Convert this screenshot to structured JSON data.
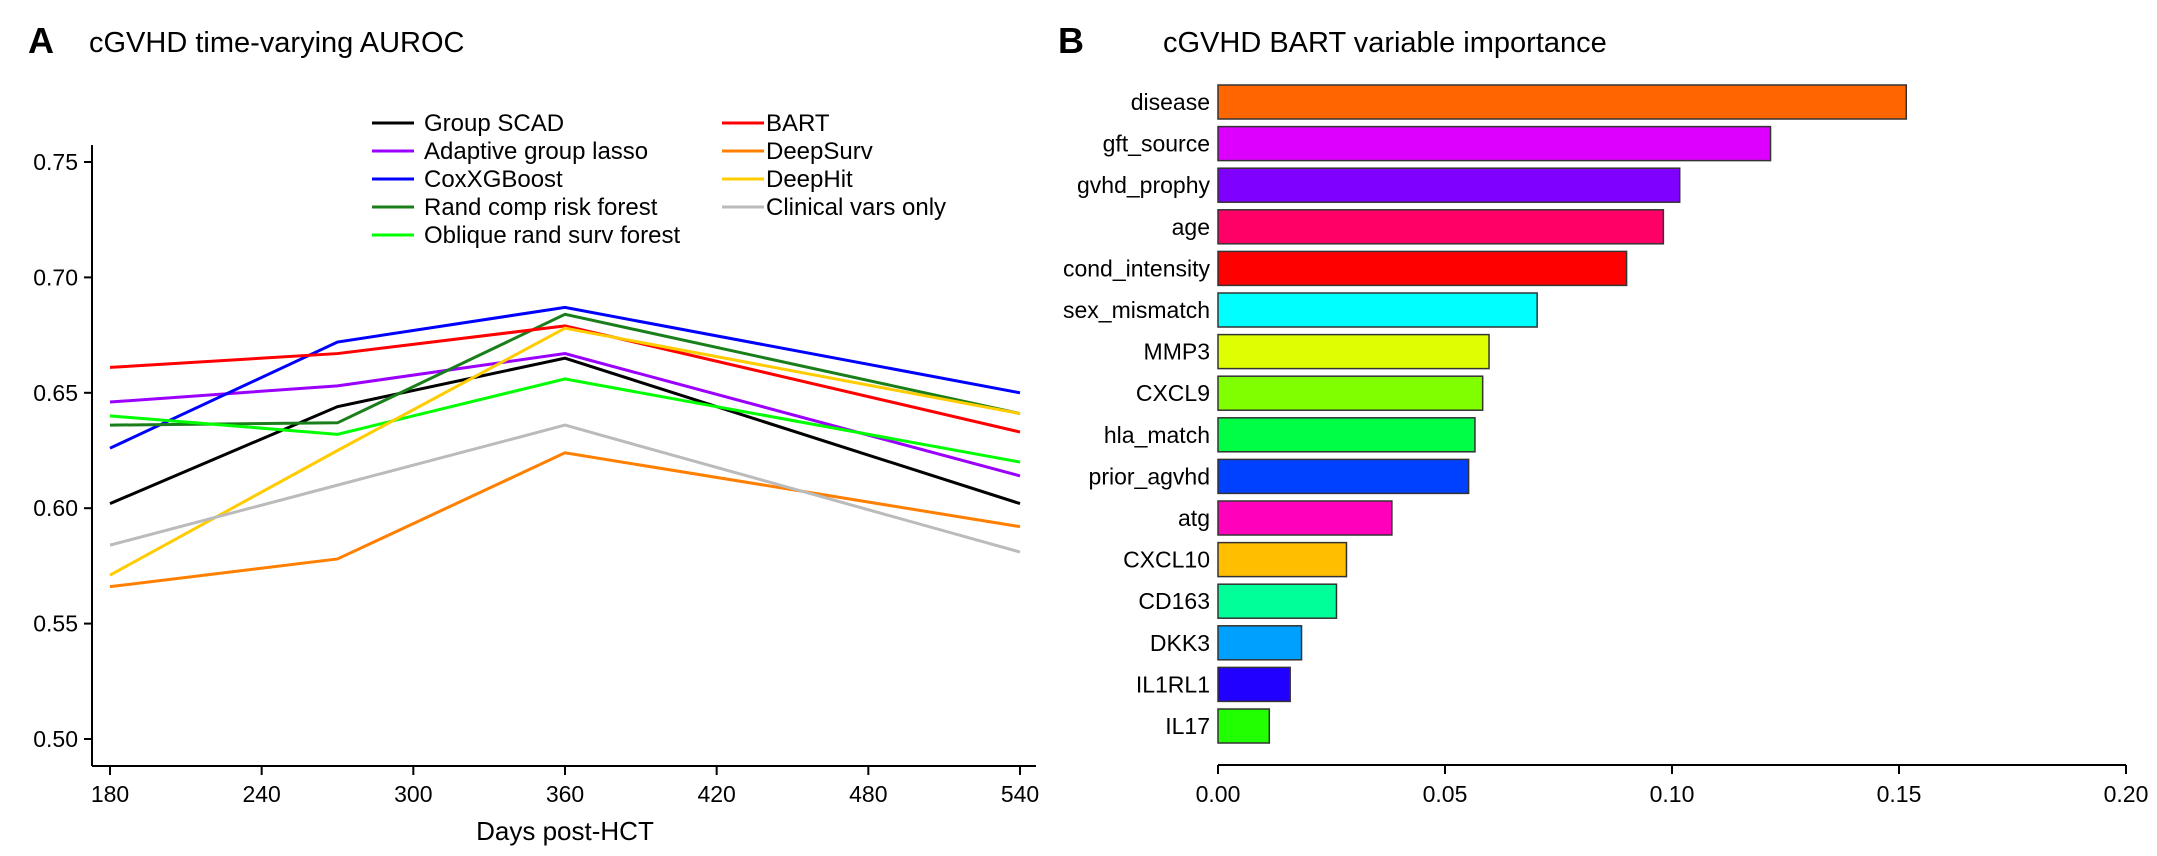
{
  "chart_data": [
    {
      "panel": "A",
      "type": "line",
      "title": "cGVHD time-varying AUROC",
      "xlabel": "Days post-HCT",
      "ylabel": "",
      "x": [
        180,
        270,
        360,
        540
      ],
      "xlim": [
        180,
        540
      ],
      "ylim": [
        0.5,
        0.75
      ],
      "xticks": [
        180,
        240,
        300,
        360,
        420,
        480,
        540
      ],
      "yticks": [
        "0.50",
        "0.55",
        "0.60",
        "0.65",
        "0.70",
        "0.75"
      ],
      "grid": false,
      "legend_placement": "top",
      "series": [
        {
          "name": "Group SCAD",
          "color": "#000000",
          "values": [
            0.602,
            0.644,
            0.665,
            0.602
          ]
        },
        {
          "name": "Adaptive group lasso",
          "color": "#9B00FF",
          "values": [
            0.646,
            0.653,
            0.667,
            0.614
          ]
        },
        {
          "name": "CoxXGBoost",
          "color": "#0000FF",
          "values": [
            0.626,
            0.672,
            0.687,
            0.65
          ]
        },
        {
          "name": "Rand comp risk forest",
          "color": "#1A7F1A",
          "values": [
            0.636,
            0.637,
            0.684,
            0.641
          ]
        },
        {
          "name": "Oblique rand surv forest",
          "color": "#00FF00",
          "values": [
            0.64,
            0.632,
            0.656,
            0.62
          ]
        },
        {
          "name": "BART",
          "color": "#FF0000",
          "values": [
            0.661,
            0.667,
            0.679,
            0.633
          ]
        },
        {
          "name": "DeepSurv",
          "color": "#FF8000",
          "values": [
            0.566,
            0.578,
            0.624,
            0.592
          ]
        },
        {
          "name": "DeepHit",
          "color": "#FFCC00",
          "values": [
            0.571,
            0.625,
            0.678,
            0.641
          ]
        },
        {
          "name": "Clinical vars only",
          "color": "#BBBBBB",
          "values": [
            0.584,
            0.61,
            0.636,
            0.581
          ]
        }
      ]
    },
    {
      "panel": "B",
      "type": "bar",
      "orientation": "horizontal",
      "title": "cGVHD BART variable importance",
      "xlabel": "",
      "ylabel": "",
      "xlim": [
        0,
        0.2
      ],
      "xticks": [
        "0.00",
        "0.05",
        "0.10",
        "0.15",
        "0.20"
      ],
      "grid": false,
      "categories": [
        "disease",
        "gft_source",
        "gvhd_prophy",
        "age",
        "cond_intensity",
        "sex_mismatch",
        "MMP3",
        "CXCL9",
        "hla_match",
        "prior_agvhd",
        "atg",
        "CXCL10",
        "CD163",
        "DKK3",
        "IL1RL1",
        "IL17"
      ],
      "values": [
        0.1516,
        0.1217,
        0.1017,
        0.0981,
        0.09,
        0.0703,
        0.0597,
        0.0583,
        0.0566,
        0.0552,
        0.0383,
        0.0283,
        0.0261,
        0.0184,
        0.0159,
        0.0113
      ],
      "colors": [
        "#FF6600",
        "#DD00FF",
        "#8000FF",
        "#FF0066",
        "#FF0000",
        "#00FFFF",
        "#DDFF00",
        "#80FF00",
        "#00FF44",
        "#0040FF",
        "#FF00BB",
        "#FFBF00",
        "#00FF99",
        "#00A0FF",
        "#2200FF",
        "#22FF00"
      ]
    }
  ]
}
